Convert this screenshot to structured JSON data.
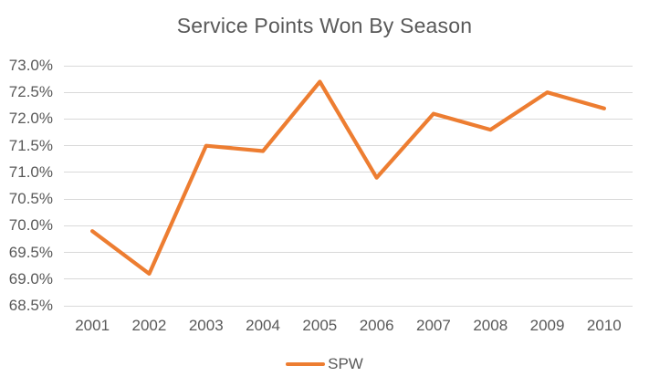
{
  "chart_data": {
    "type": "line",
    "title": "Service Points Won By Season",
    "categories": [
      "2001",
      "2002",
      "2003",
      "2004",
      "2005",
      "2006",
      "2007",
      "2008",
      "2009",
      "2010"
    ],
    "series": [
      {
        "name": "SPW",
        "values": [
          69.9,
          69.1,
          71.5,
          71.4,
          72.7,
          70.9,
          72.1,
          71.8,
          72.5,
          72.2
        ],
        "color": "#ED7D31"
      }
    ],
    "xlabel": "",
    "ylabel": "",
    "ylim": [
      68.5,
      73.0
    ],
    "y_ticks": [
      "73.0%",
      "72.5%",
      "72.0%",
      "71.5%",
      "71.0%",
      "70.5%",
      "70.0%",
      "69.5%",
      "69.0%",
      "68.5%"
    ],
    "grid": "horizontal",
    "legend_position": "bottom"
  },
  "colors": {
    "accent": "#ED7D31",
    "grid": "#D9D9D9",
    "text": "#595959",
    "background": "#FFFFFF"
  }
}
